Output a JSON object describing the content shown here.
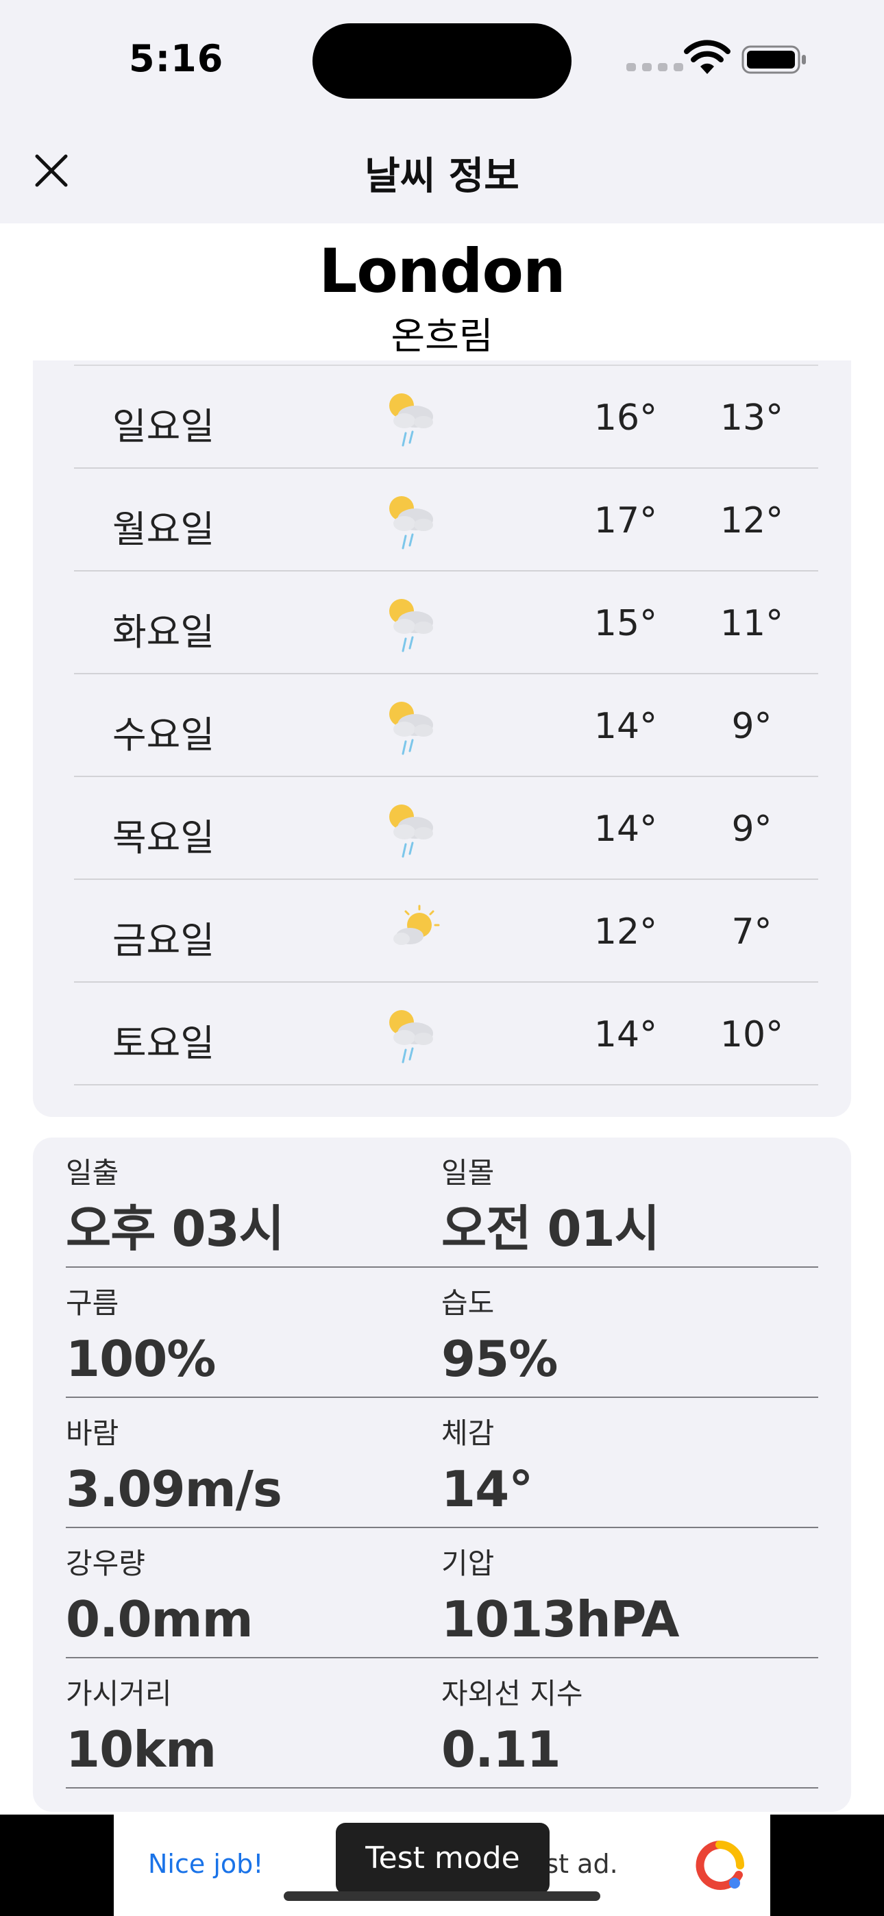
{
  "status_bar": {
    "time": "5:16"
  },
  "nav": {
    "title": "날씨 정보",
    "close_icon": "close-icon"
  },
  "city": {
    "name": "London",
    "description": "온흐림"
  },
  "forecast": [
    {
      "day": "일요일",
      "icon": "sun-cloud-rain-icon",
      "high": "16°",
      "low": "13°"
    },
    {
      "day": "월요일",
      "icon": "sun-cloud-rain-icon",
      "high": "17°",
      "low": "12°"
    },
    {
      "day": "화요일",
      "icon": "sun-cloud-rain-icon",
      "high": "15°",
      "low": "11°"
    },
    {
      "day": "수요일",
      "icon": "sun-cloud-rain-icon",
      "high": "14°",
      "low": "9°"
    },
    {
      "day": "목요일",
      "icon": "sun-cloud-rain-icon",
      "high": "14°",
      "low": "9°"
    },
    {
      "day": "금요일",
      "icon": "sun-behind-cloud-icon",
      "high": "12°",
      "low": "7°"
    },
    {
      "day": "토요일",
      "icon": "sun-cloud-rain-icon",
      "high": "14°",
      "low": "10°"
    }
  ],
  "details": [
    {
      "label_left": "일출",
      "value_left": "오후 03시",
      "label_right": "일몰",
      "value_right": "오전 01시"
    },
    {
      "label_left": "구름",
      "value_left": "100%",
      "label_right": "습도",
      "value_right": "95%"
    },
    {
      "label_left": "바람",
      "value_left": "3.09m/s",
      "label_right": "체감",
      "value_right": "14°"
    },
    {
      "label_left": "강우량",
      "value_left": "0.0mm",
      "label_right": "기압",
      "value_right": "1013hPA"
    },
    {
      "label_left": "가시거리",
      "value_left": "10km",
      "label_right": "자외선 지수",
      "value_right": "0.11"
    }
  ],
  "ad": {
    "nice_text": "Nice job!",
    "rest_text": "est ad.",
    "test_mode_label": "Test mode"
  },
  "colors": {
    "accent_blue": "#1a73e8",
    "card_bg": "#f2f2f7",
    "header_bg": "#f2f2f7"
  }
}
